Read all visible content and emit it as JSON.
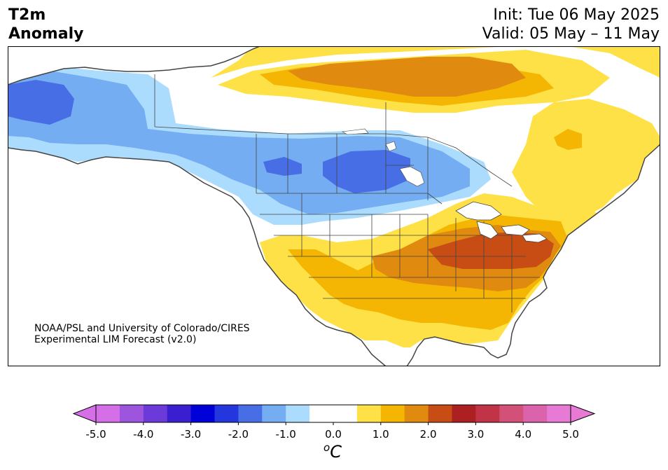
{
  "title": {
    "variable_line1": "T2m",
    "variable_line2": "Anomaly",
    "init": "Init: Tue 06 May 2025",
    "valid": "Valid: 05 May – 11 May"
  },
  "credit": {
    "line1": "NOAA/PSL and University of Colorado/CIRES",
    "line2": "Experimental LIM Forecast (v2.0)"
  },
  "colorbar": {
    "unit_base": "C",
    "unit_sup": "o",
    "ticks": [
      "-5.0",
      "-4.0",
      "-3.0",
      "-2.0",
      "-1.0",
      "0.0",
      "1.0",
      "2.0",
      "3.0",
      "4.0",
      "5.0"
    ],
    "colors": [
      "#d56fe7",
      "#9c55dc",
      "#6c3ad8",
      "#3a1fd0",
      "#0000d8",
      "#2436de",
      "#486ee5",
      "#74adf2",
      "#abdcfd",
      "#ffffff",
      "#ffffff",
      "#fee146",
      "#f4b602",
      "#e08a10",
      "#c74d14",
      "#ad2022",
      "#c13448",
      "#d35078",
      "#db63ab",
      "#e67ad5"
    ],
    "under_color": "#d56fe7",
    "over_color": "#e67ad5"
  },
  "map": {
    "colors": {
      "ocean": "#ffffff",
      "land_outline": "#444444",
      "cold_1": "#abdcfd",
      "cold_2": "#74adf2",
      "cold_3": "#486ee5",
      "warm_1": "#fee146",
      "warm_2": "#f4b602",
      "warm_3": "#e08a10",
      "warm_4": "#c74d14"
    }
  }
}
